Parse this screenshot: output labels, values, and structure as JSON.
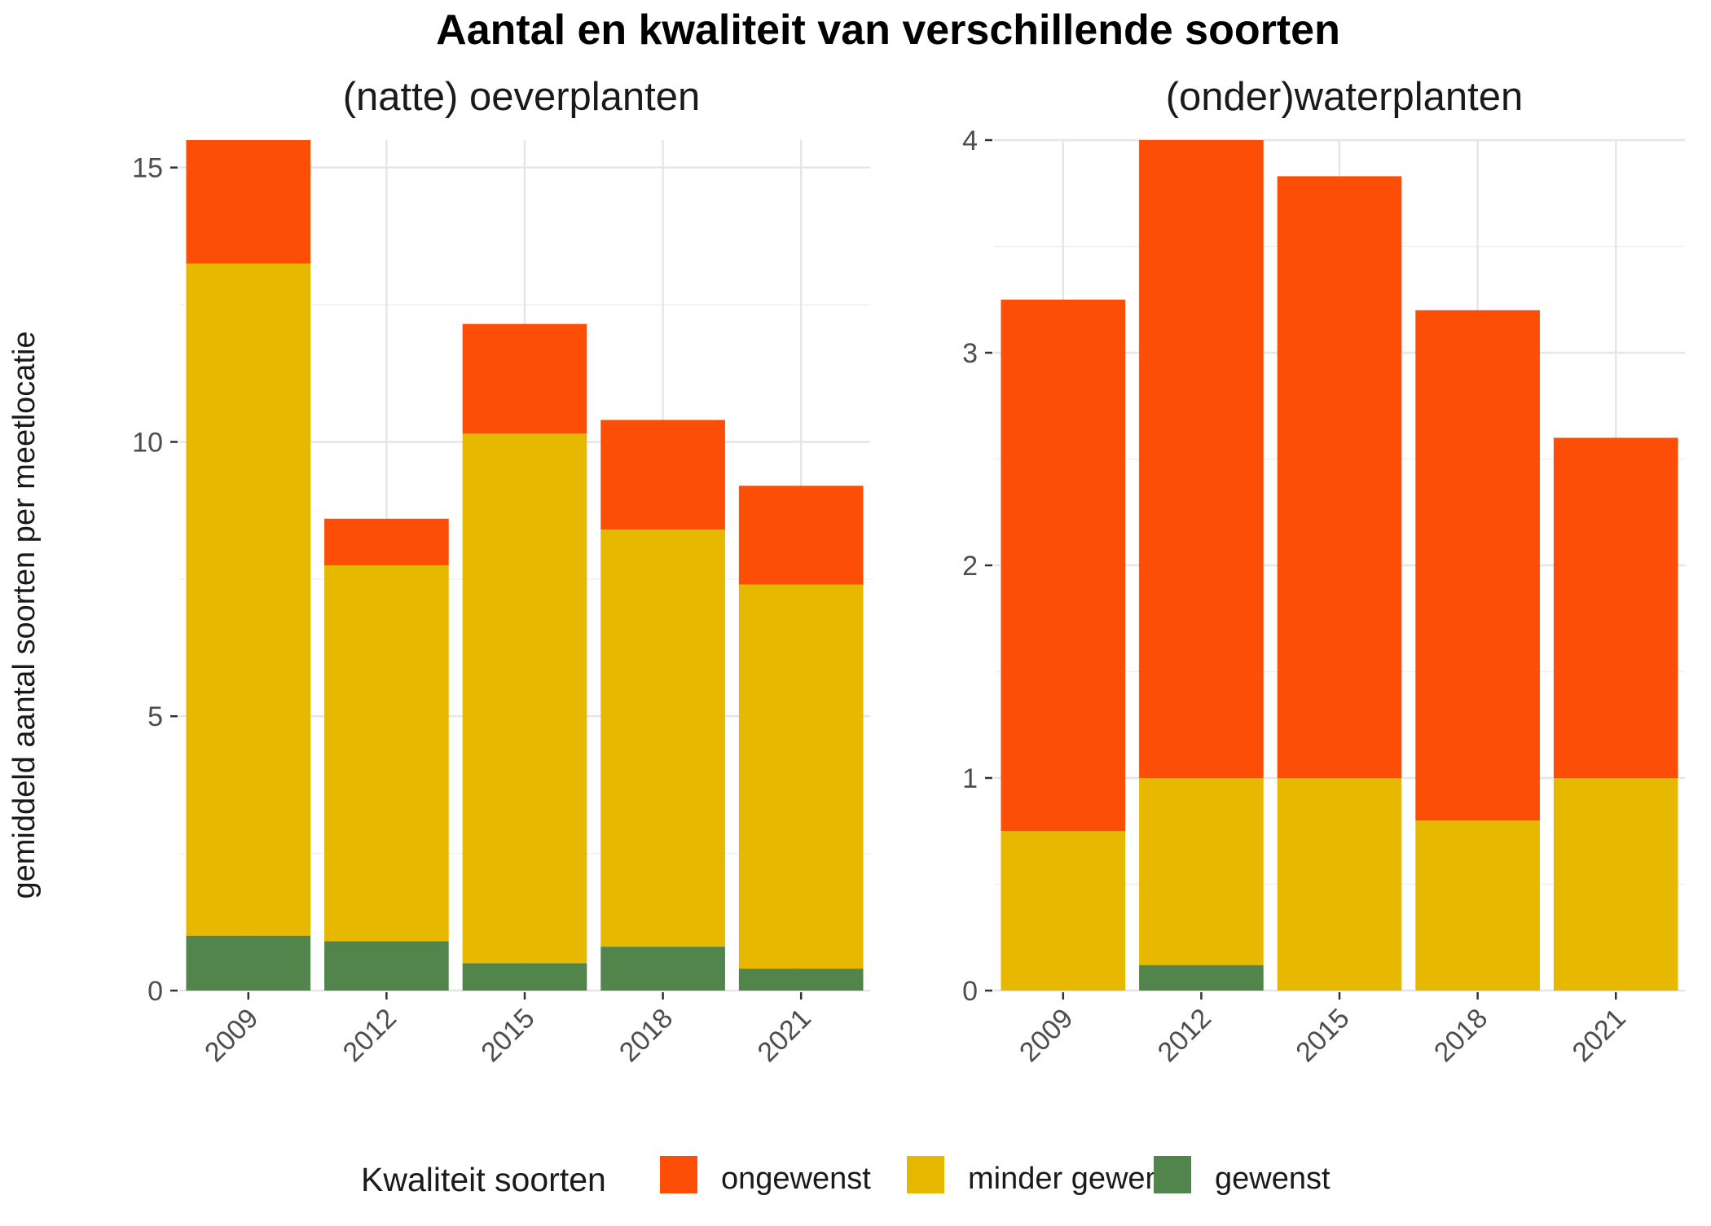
{
  "chart_data": {
    "title": "Aantal en kwaliteit van verschillende soorten",
    "ylabel": "gemiddeld aantal soorten per meetlocatie",
    "legend": {
      "title": "Kwaliteit soorten",
      "position": "bottom",
      "entries": [
        {
          "name": "ongewenst",
          "color": "#FC4E07"
        },
        {
          "name": "minder gewenst",
          "color": "#E7B800"
        },
        {
          "name": "gewenst",
          "color": "#52854C"
        }
      ]
    },
    "panels": [
      {
        "title": "(natte) oeverplanten",
        "type": "bar",
        "stacked": true,
        "categories": [
          "2009",
          "2012",
          "2015",
          "2018",
          "2021"
        ],
        "ylim": [
          0,
          15.5
        ],
        "yticks": [
          0,
          5,
          10,
          15
        ],
        "grid": true,
        "series": [
          {
            "name": "gewenst",
            "values": [
              1.0,
              0.9,
              0.5,
              0.8,
              0.4
            ]
          },
          {
            "name": "minder gewenst",
            "values": [
              12.25,
              6.85,
              9.65,
              7.6,
              7.0
            ]
          },
          {
            "name": "ongewenst",
            "values": [
              2.25,
              0.85,
              2.0,
              2.0,
              1.8
            ]
          }
        ]
      },
      {
        "title": "(onder)waterplanten",
        "type": "bar",
        "stacked": true,
        "categories": [
          "2009",
          "2012",
          "2015",
          "2018",
          "2021"
        ],
        "ylim": [
          0,
          4
        ],
        "yticks": [
          0,
          1,
          2,
          3,
          4
        ],
        "grid": true,
        "series": [
          {
            "name": "gewenst",
            "values": [
              0,
              0.12,
              0,
              0,
              0
            ]
          },
          {
            "name": "minder gewenst",
            "values": [
              0.75,
              0.88,
              1.0,
              0.8,
              1.0
            ]
          },
          {
            "name": "ongewenst",
            "values": [
              2.5,
              3.0,
              2.83,
              2.4,
              1.6
            ]
          }
        ]
      }
    ]
  }
}
